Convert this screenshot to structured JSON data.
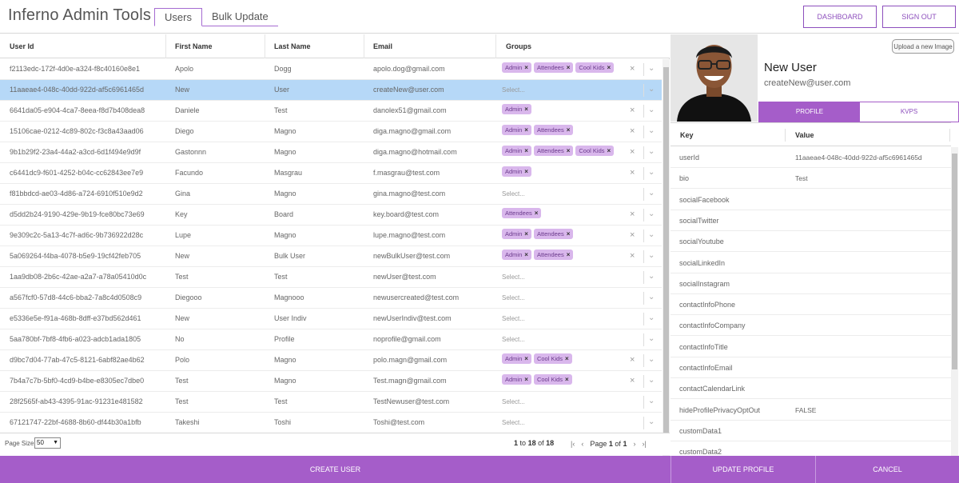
{
  "app": {
    "title": "Inferno Admin Tools"
  },
  "tabs": [
    {
      "label": "Users"
    },
    {
      "label": "Bulk Update"
    }
  ],
  "header_buttons": {
    "dashboard": "DASHBOARD",
    "sign_out": "SIGN OUT"
  },
  "grid": {
    "columns": [
      "User Id",
      "First Name",
      "Last Name",
      "Email",
      "Groups"
    ],
    "select_placeholder": "Select...",
    "rows": [
      {
        "id": "f2113edc-172f-4d0e-a324-f8c40160e8e1",
        "first": "Apolo",
        "last": "Dogg",
        "email": "apolo.dog@gmail.com",
        "groups": [
          "Admin",
          "Attendees",
          "Cool Kids"
        ],
        "selected": false
      },
      {
        "id": "11aaeae4-048c-40dd-922d-af5c6961465d",
        "first": "New",
        "last": "User",
        "email": "createNew@user.com",
        "groups": [],
        "selected": true
      },
      {
        "id": "6641da05-e904-4ca7-8eea-f8d7b408dea8",
        "first": "Daniele",
        "last": "Test",
        "email": "danolex51@gmail.com",
        "groups": [
          "Admin"
        ],
        "selected": false
      },
      {
        "id": "15106cae-0212-4c89-802c-f3c8a43aad06",
        "first": "Diego",
        "last": "Magno",
        "email": "diga.magno@gmail.com",
        "groups": [
          "Admin",
          "Attendees"
        ],
        "selected": false
      },
      {
        "id": "9b1b29f2-23a4-44a2-a3cd-6d1f494e9d9f",
        "first": "Gastonnn",
        "last": "Magno",
        "email": "diga.magno@hotmail.com",
        "groups": [
          "Admin",
          "Attendees",
          "Cool Kids"
        ],
        "selected": false
      },
      {
        "id": "c6441dc9-f601-4252-b04c-cc62843ee7e9",
        "first": "Facundo",
        "last": "Masgrau",
        "email": "f.masgrau@test.com",
        "groups": [
          "Admin"
        ],
        "selected": false
      },
      {
        "id": "f81bbdcd-ae03-4d86-a724-6910f510e9d2",
        "first": "Gina",
        "last": "Magno",
        "email": "gina.magno@test.com",
        "groups": [],
        "selected": false
      },
      {
        "id": "d5dd2b24-9190-429e-9b19-fce80bc73e69",
        "first": "Key",
        "last": "Board",
        "email": "key.board@test.com",
        "groups": [
          "Attendees"
        ],
        "selected": false
      },
      {
        "id": "9e309c2c-5a13-4c7f-ad6c-9b736922d28c",
        "first": "Lupe",
        "last": "Magno",
        "email": "lupe.magno@test.com",
        "groups": [
          "Admin",
          "Attendees"
        ],
        "selected": false
      },
      {
        "id": "5a069264-f4ba-4078-b5e9-19cf42feb705",
        "first": "New",
        "last": "Bulk User",
        "email": "newBulkUser@test.com",
        "groups": [
          "Admin",
          "Attendees"
        ],
        "selected": false
      },
      {
        "id": "1aa9db08-2b6c-42ae-a2a7-a78a05410d0c",
        "first": "Test",
        "last": "Test",
        "email": "newUser@test.com",
        "groups": [],
        "selected": false
      },
      {
        "id": "a567fcf0-57d8-44c6-bba2-7a8c4d0508c9",
        "first": "Diegooo",
        "last": "Magnooo",
        "email": "newusercreated@test.com",
        "groups": [],
        "selected": false
      },
      {
        "id": "e5336e5e-f91a-468b-8dff-e37bd562d461",
        "first": "New",
        "last": "User Indiv",
        "email": "newUserIndiv@test.com",
        "groups": [],
        "selected": false
      },
      {
        "id": "5aa780bf-7bf8-4fb6-a023-adcb1ada1805",
        "first": "No",
        "last": "Profile",
        "email": "noprofile@gmail.com",
        "groups": [],
        "selected": false
      },
      {
        "id": "d9bc7d04-77ab-47c5-8121-6abf82ae4b62",
        "first": "Polo",
        "last": "Magno",
        "email": "polo.magn@gmail.com",
        "groups": [
          "Admin",
          "Cool Kids"
        ],
        "selected": false
      },
      {
        "id": "7b4a7c7b-5bf0-4cd9-b4be-e8305ec7dbe0",
        "first": "Test",
        "last": "Magno",
        "email": "Test.magn@gmail.com",
        "groups": [
          "Admin",
          "Cool Kids"
        ],
        "selected": false
      },
      {
        "id": "28f2565f-ab43-4395-91ac-91231e481582",
        "first": "Test",
        "last": "Test",
        "email": "TestNewuser@test.com",
        "groups": [],
        "selected": false
      },
      {
        "id": "67121747-22bf-4688-8b60-df44b30a1bfb",
        "first": "Takeshi",
        "last": "Toshi",
        "email": "Toshi@test.com",
        "groups": [],
        "selected": false
      }
    ]
  },
  "footer": {
    "page_size_label": "Page Size:",
    "page_size_value": "50",
    "range_from": "1",
    "range_to_word": "to",
    "range_to": "18",
    "of_word": "of",
    "total": "18",
    "page_word": "Page",
    "page_current": "1",
    "page_total": "1"
  },
  "bottom": {
    "create_user": "CREATE USER",
    "update_profile": "UPDATE PROFILE",
    "cancel": "CANCEL"
  },
  "profile": {
    "upload_label": "Upload a new Image",
    "name": "New User",
    "email": "createNew@user.com",
    "tabs": {
      "profile": "PROFILE",
      "kvps": "KVPS"
    },
    "columns": {
      "key": "Key",
      "value": "Value"
    },
    "rows": [
      {
        "key": "userId",
        "value": "11aaeae4-048c-40dd-922d-af5c6961465d"
      },
      {
        "key": "bio",
        "value": "Test"
      },
      {
        "key": "socialFacebook",
        "value": ""
      },
      {
        "key": "socialTwitter",
        "value": ""
      },
      {
        "key": "socialYoutube",
        "value": ""
      },
      {
        "key": "socialLinkedIn",
        "value": ""
      },
      {
        "key": "socialInstagram",
        "value": ""
      },
      {
        "key": "contactInfoPhone",
        "value": ""
      },
      {
        "key": "contactInfoCompany",
        "value": ""
      },
      {
        "key": "contactInfoTitle",
        "value": ""
      },
      {
        "key": "contactInfoEmail",
        "value": ""
      },
      {
        "key": "contactCalendarLink",
        "value": ""
      },
      {
        "key": "hideProfilePrivacyOptOut",
        "value": "FALSE"
      },
      {
        "key": "customData1",
        "value": ""
      },
      {
        "key": "customData2",
        "value": ""
      }
    ]
  },
  "colors": {
    "accent": "#a55dc9",
    "chip": "#d9b7ec",
    "selected_row": "#b6d8f7"
  }
}
